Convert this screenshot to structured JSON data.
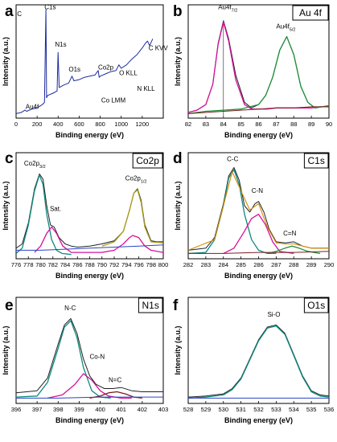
{
  "chart_data": [
    {
      "id": "a",
      "type": "line",
      "panel_label": "a",
      "xlabel": "Binding energy (eV)",
      "ylabel": "Intensity (a.u.)",
      "xlim": [
        0,
        1400
      ],
      "xticks": [
        0,
        200,
        400,
        600,
        800,
        1000,
        1200
      ],
      "ylim": [
        0,
        1
      ],
      "box_label": "",
      "annotations": [
        {
          "text": "C",
          "x": 10,
          "y": 0.9
        },
        {
          "text": "Au4f",
          "x": 90,
          "y": 0.08
        },
        {
          "text": "C1s",
          "x": 270,
          "y": 0.96
        },
        {
          "text": "N1s",
          "x": 370,
          "y": 0.63
        },
        {
          "text": "O1s",
          "x": 500,
          "y": 0.41
        },
        {
          "text": "Co2p",
          "x": 780,
          "y": 0.43
        },
        {
          "text": "O KLL",
          "x": 980,
          "y": 0.38
        },
        {
          "text": "C KVV",
          "x": 1260,
          "y": 0.6
        },
        {
          "text": "Co LMM",
          "x": 810,
          "y": 0.14
        },
        {
          "text": "N KLL",
          "x": 1150,
          "y": 0.24
        }
      ],
      "series": [
        {
          "color": "#1c2a9c",
          "width": 1,
          "x": [
            0,
            50,
            84,
            100,
            150,
            200,
            250,
            270,
            284,
            290,
            300,
            350,
            390,
            399,
            410,
            450,
            500,
            532,
            550,
            600,
            650,
            700,
            750,
            781,
            790,
            800,
            850,
            900,
            950,
            978,
            1000,
            1050,
            1100,
            1150,
            1200,
            1230,
            1250,
            1270,
            1300
          ],
          "y": [
            0.04,
            0.05,
            0.07,
            0.06,
            0.08,
            0.09,
            0.12,
            0.14,
            0.96,
            0.18,
            0.2,
            0.22,
            0.24,
            0.58,
            0.27,
            0.29,
            0.31,
            0.37,
            0.33,
            0.34,
            0.36,
            0.37,
            0.38,
            0.42,
            0.36,
            0.37,
            0.39,
            0.41,
            0.42,
            0.47,
            0.44,
            0.47,
            0.52,
            0.56,
            0.62,
            0.66,
            0.68,
            0.64,
            0.7
          ]
        }
      ]
    },
    {
      "id": "b",
      "type": "line",
      "panel_label": "b",
      "xlabel": "Binding energy (eV)",
      "ylabel": "Intensity (a.u.)",
      "xlim": [
        82,
        90
      ],
      "xticks": [
        82,
        83,
        84,
        85,
        86,
        87,
        88,
        89,
        90
      ],
      "ylim": [
        0,
        1
      ],
      "box_label": "Au 4f",
      "annotations": [
        {
          "text": "Au4f",
          "sub": "7/2",
          "x": 83.7,
          "y": 0.96
        },
        {
          "text": "Au4f",
          "sub": "5/2",
          "x": 87.0,
          "y": 0.79
        }
      ],
      "marker_line_x": 84.0,
      "series": [
        {
          "color": "#222222",
          "width": 1,
          "x": [
            82,
            82.5,
            83,
            83.4,
            83.7,
            84,
            84.3,
            84.7,
            85.2,
            85.6,
            86,
            86.4,
            86.8,
            87.2,
            87.6,
            88,
            88.4,
            88.8,
            89.2,
            89.6,
            90
          ],
          "y": [
            0.05,
            0.07,
            0.12,
            0.3,
            0.66,
            0.86,
            0.7,
            0.38,
            0.14,
            0.09,
            0.12,
            0.2,
            0.36,
            0.6,
            0.72,
            0.56,
            0.28,
            0.14,
            0.09,
            0.1,
            0.11
          ]
        },
        {
          "color": "#d6119a",
          "width": 1.3,
          "x": [
            82,
            82.5,
            83,
            83.4,
            83.7,
            84,
            84.3,
            84.7,
            85.2,
            85.6,
            86,
            86.5,
            87,
            87.5,
            88,
            88.5,
            89,
            89.5,
            90
          ],
          "y": [
            0.05,
            0.07,
            0.12,
            0.3,
            0.65,
            0.85,
            0.68,
            0.34,
            0.12,
            0.08,
            0.08,
            0.08,
            0.09,
            0.09,
            0.09,
            0.09,
            0.09,
            0.1,
            0.1
          ]
        },
        {
          "color": "#1e8f3a",
          "width": 1.3,
          "x": [
            82,
            83,
            84,
            85,
            86,
            86.4,
            86.8,
            87.2,
            87.6,
            88,
            88.4,
            88.8,
            89.2,
            89.6,
            90
          ],
          "y": [
            0.04,
            0.06,
            0.07,
            0.08,
            0.12,
            0.2,
            0.36,
            0.6,
            0.72,
            0.56,
            0.28,
            0.14,
            0.09,
            0.1,
            0.11
          ]
        },
        {
          "color": "#7a1f1f",
          "width": 1,
          "x": [
            82,
            83,
            84,
            85,
            86,
            87,
            88,
            89,
            90
          ],
          "y": [
            0.04,
            0.05,
            0.06,
            0.07,
            0.08,
            0.09,
            0.09,
            0.1,
            0.1
          ]
        }
      ]
    },
    {
      "id": "c",
      "type": "line",
      "panel_label": "c",
      "xlabel": "Binding energy (eV)",
      "ylabel": "Intensity (a.u.)",
      "xlim": [
        776,
        800
      ],
      "xticks": [
        776,
        778,
        780,
        782,
        784,
        786,
        788,
        790,
        792,
        794,
        796,
        798,
        800
      ],
      "ylim": [
        0,
        1
      ],
      "box_label": "Co2p",
      "annotations": [
        {
          "text": "Co2p",
          "sub": "3/2",
          "x": 777.3,
          "y": 0.88
        },
        {
          "text": "Sat.",
          "x": 781.5,
          "y": 0.45
        },
        {
          "text": "Co2p",
          "sub": "1/2",
          "x": 793.8,
          "y": 0.74
        }
      ],
      "series": [
        {
          "color": "#222222",
          "width": 1,
          "x": [
            776,
            777,
            778,
            779,
            779.8,
            780.4,
            781,
            781.6,
            782.2,
            783,
            784,
            785,
            786,
            788,
            790,
            792,
            793.5,
            794.5,
            795.2,
            795.8,
            796.4,
            797,
            798,
            799,
            800
          ],
          "y": [
            0.1,
            0.14,
            0.34,
            0.66,
            0.8,
            0.75,
            0.5,
            0.32,
            0.3,
            0.2,
            0.14,
            0.12,
            0.11,
            0.12,
            0.14,
            0.17,
            0.26,
            0.46,
            0.62,
            0.66,
            0.55,
            0.32,
            0.17,
            0.16,
            0.16
          ]
        },
        {
          "color": "#0d8a80",
          "width": 1.3,
          "x": [
            776,
            777,
            778,
            779,
            779.8,
            780.4,
            781,
            781.8,
            782.6,
            783.5,
            785
          ],
          "y": [
            0.05,
            0.1,
            0.32,
            0.64,
            0.79,
            0.7,
            0.42,
            0.18,
            0.08,
            0.05,
            0.04
          ]
        },
        {
          "color": "#d6119a",
          "width": 1.3,
          "x": [
            779,
            780,
            781,
            781.8,
            782.6,
            783.6,
            785,
            790,
            792,
            793.5,
            794.5,
            795,
            796,
            797,
            798,
            800
          ],
          "y": [
            0.06,
            0.12,
            0.24,
            0.3,
            0.24,
            0.12,
            0.06,
            0.06,
            0.08,
            0.14,
            0.2,
            0.22,
            0.2,
            0.12,
            0.08,
            0.06
          ]
        },
        {
          "color": "#a89a1a",
          "width": 1.3,
          "x": [
            790,
            792,
            793.5,
            794.5,
            795.2,
            795.8,
            796.4,
            797,
            798,
            800
          ],
          "y": [
            0.12,
            0.16,
            0.26,
            0.46,
            0.62,
            0.65,
            0.53,
            0.3,
            0.16,
            0.15
          ]
        },
        {
          "color": "#2a43c6",
          "width": 1,
          "x": [
            776,
            780,
            784,
            788,
            792,
            796,
            800
          ],
          "y": [
            0.08,
            0.08,
            0.09,
            0.1,
            0.11,
            0.12,
            0.13
          ]
        }
      ]
    },
    {
      "id": "d",
      "type": "line",
      "panel_label": "d",
      "xlabel": "Binding energy (eV)",
      "ylabel": "Intensity (a.u.)",
      "xlim": [
        282,
        290
      ],
      "xticks": [
        282,
        283,
        284,
        285,
        286,
        287,
        288,
        289,
        290
      ],
      "ylim": [
        0,
        1
      ],
      "box_label": "C1s",
      "annotations": [
        {
          "text": "C-C",
          "x": 284.2,
          "y": 0.92
        },
        {
          "text": "C-N",
          "x": 285.6,
          "y": 0.62
        },
        {
          "text": "C=N",
          "x": 287.4,
          "y": 0.22
        }
      ],
      "series": [
        {
          "color": "#222222",
          "width": 1,
          "x": [
            282,
            283,
            283.5,
            284,
            284.3,
            284.6,
            284.9,
            285.2,
            285.5,
            285.8,
            286,
            286.3,
            286.6,
            287,
            287.5,
            288,
            288.5,
            289,
            290
          ],
          "y": [
            0.08,
            0.1,
            0.2,
            0.52,
            0.78,
            0.86,
            0.74,
            0.5,
            0.44,
            0.52,
            0.54,
            0.44,
            0.28,
            0.16,
            0.15,
            0.16,
            0.12,
            0.1,
            0.1
          ]
        },
        {
          "color": "#0d8a80",
          "width": 1.3,
          "x": [
            282,
            283,
            283.5,
            284,
            284.3,
            284.6,
            284.9,
            285.2,
            285.6,
            286,
            286.5,
            287
          ],
          "y": [
            0.05,
            0.06,
            0.18,
            0.5,
            0.76,
            0.84,
            0.7,
            0.42,
            0.18,
            0.08,
            0.05,
            0.05
          ]
        },
        {
          "color": "#d6119a",
          "width": 1.3,
          "x": [
            284,
            284.6,
            285.2,
            285.6,
            286,
            286.4,
            286.8,
            287.2,
            288
          ],
          "y": [
            0.05,
            0.1,
            0.26,
            0.38,
            0.42,
            0.32,
            0.16,
            0.07,
            0.05
          ]
        },
        {
          "color": "#1e8f3a",
          "width": 1.3,
          "x": [
            286.5,
            287,
            287.5,
            287.9,
            288.3,
            288.8,
            289.5
          ],
          "y": [
            0.05,
            0.07,
            0.1,
            0.12,
            0.1,
            0.07,
            0.05
          ]
        },
        {
          "color": "#d98a00",
          "width": 1.1,
          "x": [
            282,
            283.5,
            284.5,
            285.5,
            286,
            286.5,
            287,
            287.5,
            288,
            289,
            290
          ],
          "y": [
            0.08,
            0.18,
            0.82,
            0.46,
            0.52,
            0.3,
            0.15,
            0.14,
            0.14,
            0.1,
            0.1
          ]
        },
        {
          "color": "#7a1f1f",
          "width": 1,
          "x": [
            282,
            284,
            286,
            288,
            290
          ],
          "y": [
            0.05,
            0.05,
            0.06,
            0.06,
            0.07
          ]
        }
      ]
    },
    {
      "id": "e",
      "type": "line",
      "panel_label": "e",
      "xlabel": "Binding energy (eV)",
      "ylabel": "Intensity (a.u.)",
      "xlim": [
        396,
        403
      ],
      "xticks": [
        396,
        397,
        398,
        399,
        400,
        401,
        402,
        403
      ],
      "ylim": [
        0,
        1
      ],
      "box_label": "N1s",
      "annotations": [
        {
          "text": "N-C",
          "x": 398.3,
          "y": 0.88
        },
        {
          "text": "Co-N",
          "x": 399.5,
          "y": 0.42
        },
        {
          "text": "N=C",
          "x": 400.4,
          "y": 0.2
        }
      ],
      "series": [
        {
          "color": "#222222",
          "width": 1,
          "x": [
            396,
            397,
            397.5,
            398,
            398.3,
            398.6,
            398.9,
            399.2,
            399.5,
            399.8,
            400.2,
            400.6,
            401,
            401.5,
            402,
            402.5,
            403
          ],
          "y": [
            0.1,
            0.12,
            0.24,
            0.56,
            0.74,
            0.8,
            0.66,
            0.42,
            0.26,
            0.18,
            0.14,
            0.14,
            0.15,
            0.12,
            0.11,
            0.11,
            0.11
          ]
        },
        {
          "color": "#0d8a80",
          "width": 1.3,
          "x": [
            396,
            397,
            397.5,
            398,
            398.3,
            398.6,
            398.9,
            399.2,
            399.6,
            400,
            400.5
          ],
          "y": [
            0.06,
            0.07,
            0.2,
            0.52,
            0.72,
            0.78,
            0.62,
            0.34,
            0.12,
            0.06,
            0.05
          ]
        },
        {
          "color": "#d6119a",
          "width": 1.3,
          "x": [
            397.5,
            398.2,
            398.8,
            399.2,
            399.6,
            400,
            400.4,
            401,
            401.5
          ],
          "y": [
            0.05,
            0.08,
            0.18,
            0.28,
            0.22,
            0.12,
            0.07,
            0.05,
            0.05
          ]
        },
        {
          "color": "#7a1f1f",
          "width": 1.3,
          "x": [
            399.5,
            400,
            400.4,
            400.8,
            401.2,
            401.6,
            402
          ],
          "y": [
            0.05,
            0.07,
            0.1,
            0.11,
            0.09,
            0.06,
            0.05
          ]
        },
        {
          "color": "#2a43c6",
          "width": 1,
          "x": [
            396,
            398,
            400,
            402,
            403
          ],
          "y": [
            0.05,
            0.05,
            0.06,
            0.06,
            0.06
          ]
        }
      ]
    },
    {
      "id": "f",
      "type": "line",
      "panel_label": "f",
      "xlabel": "Binding energy (eV)",
      "ylabel": "Intensity (a.u.)",
      "xlim": [
        528,
        536
      ],
      "xticks": [
        528,
        529,
        530,
        531,
        532,
        533,
        534,
        535,
        536
      ],
      "ylim": [
        0,
        1
      ],
      "box_label": "O1s",
      "annotations": [
        {
          "text": "Si-O",
          "x": 532.5,
          "y": 0.82
        }
      ],
      "series": [
        {
          "color": "#222222",
          "width": 1,
          "x": [
            528,
            529,
            530,
            530.5,
            531,
            531.5,
            532,
            532.5,
            533,
            533.5,
            534,
            534.5,
            535,
            535.5,
            536
          ],
          "y": [
            0.06,
            0.07,
            0.09,
            0.14,
            0.24,
            0.42,
            0.6,
            0.72,
            0.74,
            0.66,
            0.46,
            0.26,
            0.12,
            0.08,
            0.07
          ]
        },
        {
          "color": "#0d8a80",
          "width": 1.3,
          "x": [
            528,
            529,
            530,
            530.5,
            531,
            531.5,
            532,
            532.5,
            533,
            533.5,
            534,
            534.5,
            535,
            535.5,
            536
          ],
          "y": [
            0.05,
            0.06,
            0.08,
            0.13,
            0.23,
            0.41,
            0.59,
            0.71,
            0.73,
            0.65,
            0.45,
            0.25,
            0.11,
            0.07,
            0.06
          ]
        },
        {
          "color": "#2a43c6",
          "width": 1,
          "x": [
            528,
            530,
            532,
            534,
            536
          ],
          "y": [
            0.05,
            0.05,
            0.05,
            0.05,
            0.05
          ]
        }
      ]
    }
  ]
}
